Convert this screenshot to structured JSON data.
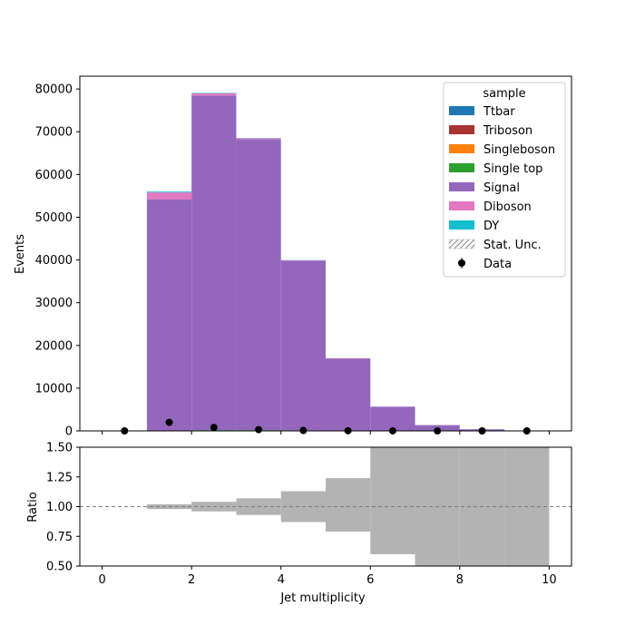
{
  "chart_data": [
    {
      "type": "bar",
      "stacked": true,
      "xlabel": "",
      "ylabel": "Events",
      "xlim": [
        -0.5,
        10.5
      ],
      "ylim": [
        0,
        83000
      ],
      "x_ticks": [
        0,
        2,
        4,
        6,
        8,
        10
      ],
      "y_ticks": [
        0,
        10000,
        20000,
        30000,
        40000,
        50000,
        60000,
        70000,
        80000
      ],
      "bin_edges": [
        0,
        1,
        2,
        3,
        4,
        5,
        6,
        7,
        8,
        9,
        10
      ],
      "series": [
        {
          "name": "Ttbar",
          "color": "#1f77b4",
          "values": [
            0,
            50,
            150,
            150,
            100,
            60,
            30,
            10,
            5,
            2
          ]
        },
        {
          "name": "Triboson",
          "color": "#aa3333",
          "values": [
            0,
            0,
            0,
            0,
            0,
            0,
            0,
            0,
            0,
            0
          ]
        },
        {
          "name": "Singleboson",
          "color": "#ff7f0e",
          "values": [
            0,
            0,
            0,
            0,
            0,
            0,
            0,
            0,
            0,
            0
          ]
        },
        {
          "name": "Single top",
          "color": "#2ca02c",
          "values": [
            0,
            20,
            60,
            50,
            30,
            15,
            5,
            2,
            1,
            0
          ]
        },
        {
          "name": "Signal",
          "color": "#9467bd",
          "values": [
            0,
            54130,
            78290,
            68100,
            39730,
            16880,
            5630,
            1340,
            380,
            100
          ]
        },
        {
          "name": "Diboson",
          "color": "#e377c2",
          "values": [
            0,
            1600,
            500,
            200,
            80,
            30,
            10,
            3,
            1,
            0
          ]
        },
        {
          "name": "DY",
          "color": "#17becf",
          "values": [
            0,
            200,
            100,
            50,
            30,
            10,
            5,
            2,
            1,
            0
          ]
        }
      ],
      "data": {
        "name": "Data",
        "x": [
          0.5,
          1.5,
          2.5,
          3.5,
          4.5,
          5.5,
          6.5,
          7.5,
          8.5,
          9.5
        ],
        "y": [
          0,
          2000,
          800,
          300,
          100,
          30,
          10,
          3,
          1,
          0
        ]
      },
      "stat_unc_label": "Stat. Unc.",
      "legend": {
        "title": "sample",
        "placement": "top-right"
      }
    },
    {
      "type": "area",
      "xlabel": "Jet multiplicity",
      "ylabel": "Ratio",
      "xlim": [
        -0.5,
        10.5
      ],
      "ylim": [
        0.5,
        1.5
      ],
      "x_ticks": [
        0,
        2,
        4,
        6,
        8,
        10
      ],
      "y_ticks": [
        0.5,
        0.75,
        1.0,
        1.25,
        1.5
      ],
      "reference_line": 1.0,
      "unc_band": {
        "bin_edges": [
          1,
          2,
          3,
          4,
          5,
          6,
          7,
          8,
          9,
          10
        ],
        "low": [
          0.98,
          0.96,
          0.93,
          0.87,
          0.79,
          0.6,
          0.5,
          0.5,
          0.5
        ],
        "high": [
          1.02,
          1.04,
          1.07,
          1.13,
          1.24,
          1.5,
          1.5,
          1.5,
          1.5
        ]
      }
    }
  ]
}
